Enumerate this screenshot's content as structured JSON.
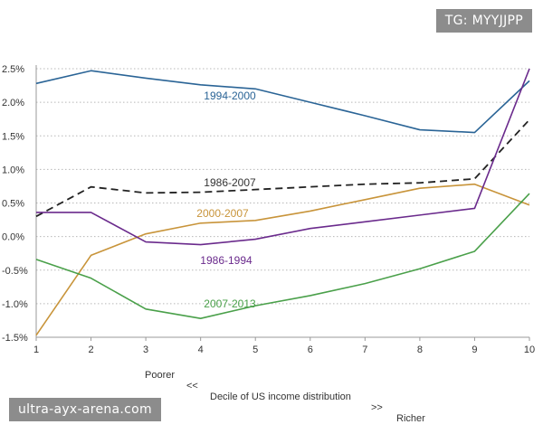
{
  "watermarks": {
    "top_right": "TG: MYYJJPP",
    "bottom_left": "ultra-ayx-arena.com"
  },
  "x_caption": {
    "left": "Poorer",
    "left_arrows": "<<",
    "center": "Decile of US income distribution",
    "right_arrows": ">>",
    "right": "Richer"
  },
  "chart_data": {
    "type": "line",
    "x": [
      1,
      2,
      3,
      4,
      5,
      6,
      7,
      8,
      9,
      10
    ],
    "x_tick_labels": [
      "1",
      "2",
      "3",
      "4",
      "5",
      "6",
      "7",
      "8",
      "9",
      "10"
    ],
    "y_tick_values": [
      2.5,
      2.0,
      1.5,
      1.0,
      0.5,
      0.0,
      -0.5,
      -1.0,
      -1.5
    ],
    "y_tick_labels": [
      "2.5%",
      "2.0%",
      "1.5%",
      "1.0%",
      "0.5%",
      "0.0%",
      "-0.5%",
      "-1.0%",
      "-1.5%"
    ],
    "ylim": [
      -1.5,
      2.5
    ],
    "xlim": [
      1,
      10
    ],
    "grid": "horizontal dotted",
    "series": [
      {
        "name": "1994-2000",
        "color": "#2a6496",
        "dash": false,
        "values": [
          2.28,
          2.47,
          2.36,
          2.26,
          2.2,
          2.0,
          1.8,
          1.59,
          1.55,
          2.32
        ]
      },
      {
        "name": "1986-2007",
        "color": "#222222",
        "dash": true,
        "values": [
          0.3,
          0.74,
          0.65,
          0.66,
          0.7,
          0.74,
          0.78,
          0.8,
          0.86,
          1.74
        ]
      },
      {
        "name": "2000-2007",
        "color": "#c8943a",
        "dash": false,
        "values": [
          -1.47,
          -0.28,
          0.04,
          0.2,
          0.24,
          0.38,
          0.55,
          0.72,
          0.78,
          0.47
        ]
      },
      {
        "name": "1986-1994",
        "color": "#6a2a8c",
        "dash": false,
        "values": [
          0.36,
          0.36,
          -0.08,
          -0.12,
          -0.04,
          0.12,
          0.22,
          0.32,
          0.42,
          2.5
        ]
      },
      {
        "name": "2007-2013",
        "color": "#4aa04a",
        "dash": false,
        "values": [
          -0.34,
          -0.62,
          -1.08,
          -1.22,
          -1.03,
          -0.88,
          -0.7,
          -0.48,
          -0.22,
          0.64
        ]
      }
    ]
  }
}
